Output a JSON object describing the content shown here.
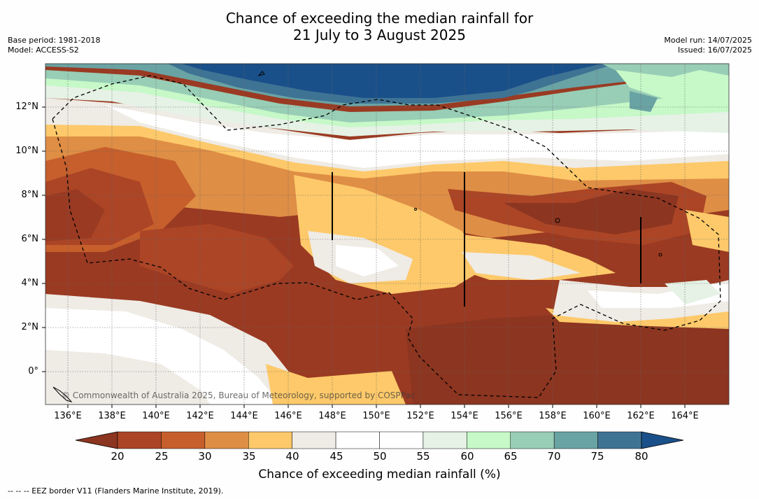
{
  "title_line1": "Chance of exceeding the median rainfall for",
  "title_line2": "21 July to 3 August 2025",
  "meta_left": {
    "base_period": "Base period: 1981-2018",
    "model": "Model: ACCESS-S2"
  },
  "meta_right": {
    "model_run": "Model run: 14/07/2025",
    "issued": "Issued: 16/07/2025"
  },
  "lat_labels": [
    "12°N",
    "10°N",
    "8°N",
    "6°N",
    "4°N",
    "2°N",
    "0°"
  ],
  "lon_labels": [
    "136°E",
    "138°E",
    "140°E",
    "142°E",
    "144°E",
    "146°E",
    "148°E",
    "150°E",
    "152°E",
    "154°E",
    "156°E",
    "158°E",
    "160°E",
    "162°E",
    "164°E"
  ],
  "copyright": "© Commonwealth of Australia 2025, Bureau of Meteorology, supported by COSPPac",
  "colorbar": {
    "title": "Chance of exceeding median rainfall (%)",
    "ticks": [
      "20",
      "25",
      "30",
      "35",
      "40",
      "45",
      "50",
      "55",
      "60",
      "65",
      "70",
      "75",
      "80"
    ],
    "colors": [
      "#8c3520",
      "#ab4526",
      "#c65f2c",
      "#df8e45",
      "#fdc96a",
      "#efebe5",
      "#ffffff",
      "#ffffff",
      "#e5f2e5",
      "#c6f8c8",
      "#98cdb6",
      "#6aa3a4",
      "#3f7394",
      "#1a5089"
    ]
  },
  "footnote": "--  --  -- EEZ border V11 (Flanders Marine Institute, 2019)."
}
